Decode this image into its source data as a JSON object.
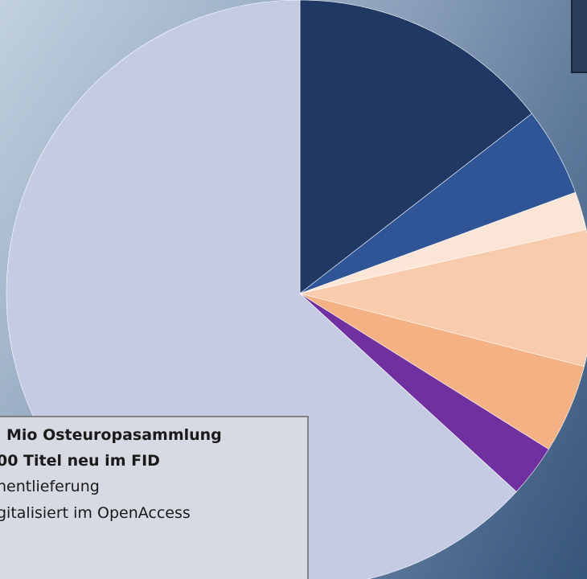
{
  "chart_data": {
    "type": "pie",
    "values": [
      14.5,
      4.9,
      2.1,
      7.5,
      4.9,
      2.9,
      63.2
    ],
    "colors": [
      "#1f3864",
      "#2f5597",
      "#fbe5d6",
      "#f8cbad",
      "#f4b183",
      "#7030a0",
      "#c4cbe3"
    ]
  },
  "text_box": {
    "lines": [
      "Mio Osteuropasammlung",
      "00 Titel neu im FID",
      "hentlieferung",
      "gitalisiert im OpenAccess"
    ]
  }
}
